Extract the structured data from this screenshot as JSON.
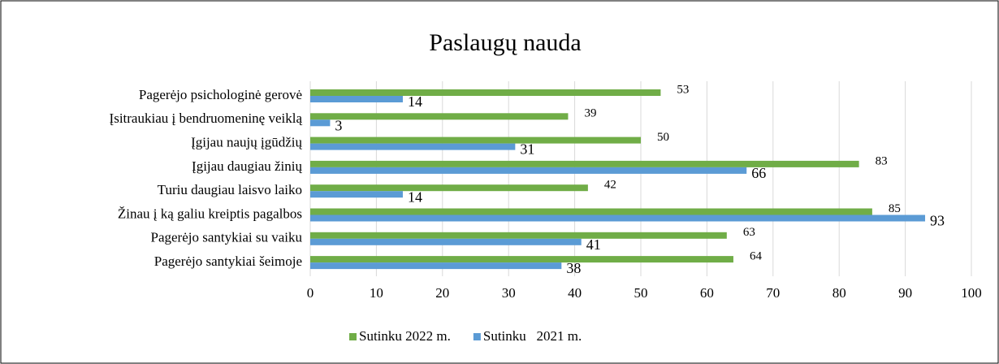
{
  "chart_data": {
    "type": "barh",
    "title": "Paslaugų nauda",
    "categories": [
      "Pagerėjo psichologinė gerovė",
      "Įsitraukiau į bendruomeninę veiklą",
      "Įgijau naujų įgūdžių",
      "Įgijau daugiau žinių",
      "Turiu daugiau laisvo laiko",
      "Žinau į ką galiu kreiptis pagalbos",
      "Pagerėjo santykiai su vaiku",
      "Pagerėjo santykiai šeimoje"
    ],
    "series": [
      {
        "name": "Sutinku 2022 m.",
        "color": "#70ad47",
        "values": [
          53,
          39,
          50,
          83,
          42,
          85,
          63,
          64
        ]
      },
      {
        "name": "Sutinku   2021 m.",
        "color": "#5b9bd5",
        "values": [
          14,
          3,
          31,
          66,
          14,
          93,
          41,
          38
        ]
      }
    ],
    "xlim": [
      0,
      100
    ],
    "xticks": [
      0,
      10,
      20,
      30,
      40,
      50,
      60,
      70,
      80,
      90,
      100
    ],
    "grid": true,
    "legend": "bottom"
  }
}
